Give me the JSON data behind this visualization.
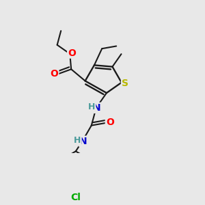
{
  "background_color": "#e8e8e8",
  "bond_color": "#1a1a1a",
  "atom_colors": {
    "O": "#ff0000",
    "N": "#0000cd",
    "S": "#b8b800",
    "Cl": "#00aa00",
    "C": "#1a1a1a",
    "H": "#4a9a9a"
  },
  "figsize": [
    3.0,
    3.0
  ],
  "dpi": 100
}
